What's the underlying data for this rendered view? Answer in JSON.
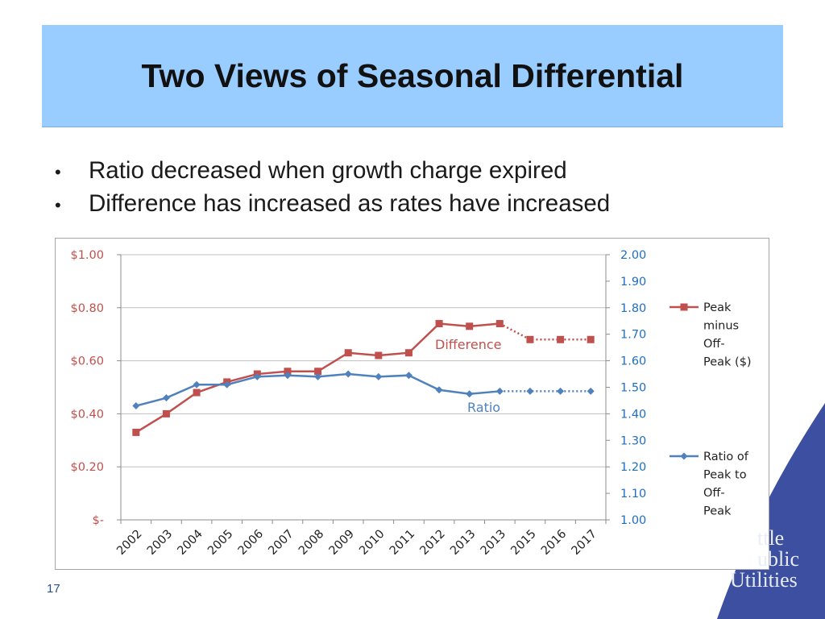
{
  "slide": {
    "title": "Two Views of Seasonal Differential",
    "bullets": [
      "Ratio decreased when growth charge expired",
      "Difference has increased as rates have increased"
    ],
    "slide_number": "17",
    "logo_lines": [
      "ttle",
      "ublic",
      "Utilities"
    ]
  },
  "colors": {
    "title_band": "#99ccff",
    "difference_series": "#c0504d",
    "ratio_series": "#4f81bd",
    "left_axis_text": "#c0504d",
    "right_axis_text": "#1f6fbf",
    "background_swoosh": "#3c4fa0"
  },
  "chart_data": {
    "type": "line",
    "x": [
      "2002",
      "2003",
      "2004",
      "2005",
      "2006",
      "2007",
      "2008",
      "2009",
      "2010",
      "2011",
      "2012",
      "2013",
      "2013",
      "2015",
      "2016",
      "2017"
    ],
    "left_axis": {
      "ticks": [
        0,
        0.2,
        0.4,
        0.6,
        0.8,
        1.0
      ],
      "tick_labels": [
        "$-",
        "$0.20",
        "$0.40",
        "$0.60",
        "$0.80",
        "$1.00"
      ],
      "ylim": [
        0,
        1.0
      ]
    },
    "right_axis": {
      "ticks": [
        1.0,
        1.1,
        1.2,
        1.3,
        1.4,
        1.5,
        1.6,
        1.7,
        1.8,
        1.9,
        2.0
      ],
      "tick_labels": [
        "1.00",
        "1.10",
        "1.20",
        "1.30",
        "1.40",
        "1.50",
        "1.60",
        "1.70",
        "1.80",
        "1.90",
        "2.00"
      ],
      "ylim": [
        1.0,
        2.0
      ]
    },
    "grid": "horizontal",
    "legend_placement": "right",
    "series": [
      {
        "name": "Peak minus Off-Peak ($)",
        "legend_lines": [
          "Peak",
          "minus",
          "Off-",
          "Peak ($)"
        ],
        "axis": "left",
        "marker": "square",
        "annotation": "Difference",
        "values": [
          0.33,
          0.4,
          0.48,
          0.52,
          0.55,
          0.56,
          0.56,
          0.63,
          0.62,
          0.63,
          0.74,
          0.73,
          0.74,
          0.68,
          0.68,
          0.68
        ],
        "dotted_from_index": 12
      },
      {
        "name": "Ratio of Peak to Off-Peak",
        "legend_lines": [
          "Ratio of",
          "Peak to",
          "Off-",
          "Peak"
        ],
        "axis": "right",
        "marker": "diamond",
        "annotation": "Ratio",
        "values": [
          1.43,
          1.46,
          1.51,
          1.51,
          1.54,
          1.545,
          1.54,
          1.55,
          1.54,
          1.545,
          1.49,
          1.475,
          1.485,
          1.485,
          1.485,
          1.485
        ],
        "dotted_from_index": 12
      }
    ]
  }
}
